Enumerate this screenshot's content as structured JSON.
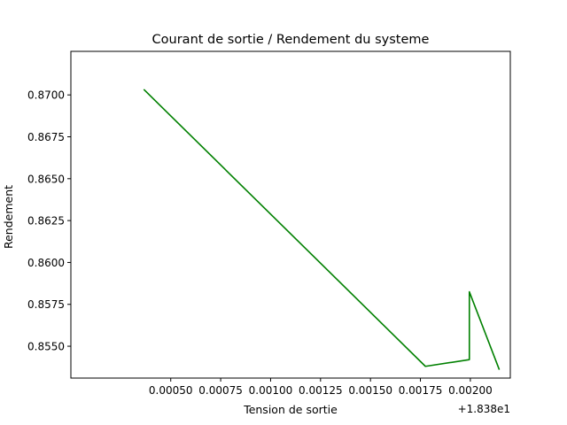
{
  "chart_data": {
    "type": "line",
    "title": "Courant de sortie / Rendement du systeme",
    "xlabel": "Tension de sortie",
    "ylabel": "Rendement",
    "x_offset_label": "+1.838e1",
    "x": [
      18.380365,
      18.381775,
      18.381995,
      18.381995,
      18.382145
    ],
    "series": [
      {
        "values": [
          0.87033,
          0.8538,
          0.8542,
          0.85825,
          0.8536
        ]
      }
    ],
    "xlim": [
      18.38,
      18.3822
    ],
    "ylim": [
      0.8531,
      0.8726
    ],
    "x_ticks": [
      18.3805,
      18.38075,
      18.381,
      18.38125,
      18.3815,
      18.38175,
      18.382
    ],
    "x_tick_labels": [
      "0.00050",
      "0.00075",
      "0.00100",
      "0.00125",
      "0.00150",
      "0.00175",
      "0.00200"
    ],
    "y_ticks": [
      0.855,
      0.8575,
      0.86,
      0.8625,
      0.865,
      0.8675,
      0.87
    ],
    "y_tick_labels": [
      "0.8550",
      "0.8575",
      "0.8600",
      "0.8625",
      "0.8650",
      "0.8675",
      "0.8700"
    ],
    "grid": false,
    "line_color": "#008000"
  }
}
